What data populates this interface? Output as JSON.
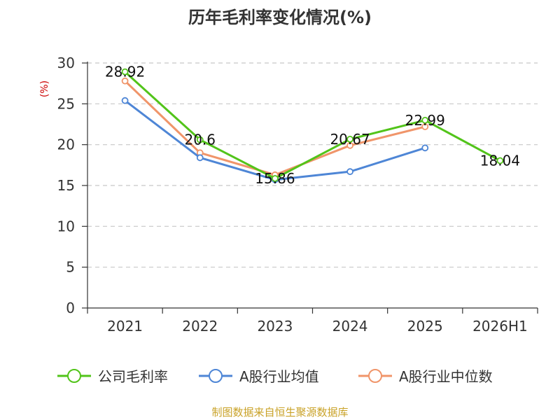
{
  "chart_data": {
    "type": "line",
    "title": "历年毛利率变化情况(%)",
    "ylabel": "(%)",
    "xlabel": "",
    "categories": [
      "2021",
      "2022",
      "2023",
      "2024",
      "2025",
      "2026H1"
    ],
    "ylim": [
      0,
      30
    ],
    "yticks": [
      0,
      5,
      10,
      15,
      20,
      25,
      30
    ],
    "grid": true,
    "legend_position": "bottom",
    "series": [
      {
        "name": "公司毛利率",
        "color": "#52c41a",
        "values": [
          28.92,
          20.6,
          15.86,
          20.67,
          22.99,
          18.04
        ],
        "labels": [
          "28.92",
          "20.6",
          "15.86",
          "20.67",
          "22.99",
          "18.04"
        ]
      },
      {
        "name": "A股行业均值",
        "color": "#4e86d6",
        "values": [
          25.4,
          18.4,
          15.7,
          16.7,
          19.6,
          null
        ]
      },
      {
        "name": "A股行业中位数",
        "color": "#f0956a",
        "values": [
          27.8,
          19.0,
          16.3,
          19.9,
          22.2,
          null
        ]
      }
    ],
    "ylabel_color": "#cc0000"
  },
  "source_text": "制图数据来自恒生聚源数据库",
  "source_color": "#c9a227"
}
